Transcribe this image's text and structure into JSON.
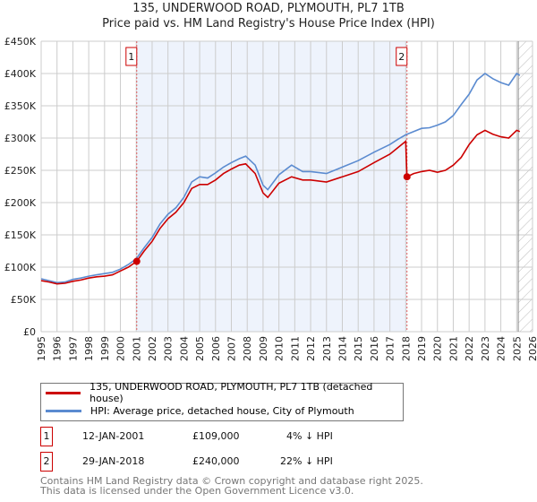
{
  "chart_data": {
    "type": "line",
    "title": "135, UNDERWOOD ROAD, PLYMOUTH, PL7 1TB",
    "subtitle": "Price paid vs. HM Land Registry's House Price Index (HPI)",
    "xlim": [
      1995,
      2026
    ],
    "ylim": [
      0,
      450000
    ],
    "yticks": [
      0,
      50000,
      100000,
      150000,
      200000,
      250000,
      300000,
      350000,
      400000,
      450000
    ],
    "ytick_labels": [
      "£0",
      "£50K",
      "£100K",
      "£150K",
      "£200K",
      "£250K",
      "£300K",
      "£350K",
      "£400K",
      "£450K"
    ],
    "xticks": [
      1995,
      1996,
      1997,
      1998,
      1999,
      2000,
      2001,
      2002,
      2003,
      2004,
      2005,
      2006,
      2007,
      2008,
      2009,
      2010,
      2011,
      2012,
      2013,
      2014,
      2015,
      2016,
      2017,
      2018,
      2019,
      2020,
      2021,
      2022,
      2023,
      2024,
      2025,
      2026
    ],
    "grid": true,
    "shaded_range": [
      2001.03,
      2018.08
    ],
    "hatched_from": 2025.1,
    "series": [
      {
        "name": "135, UNDERWOOD ROAD, PLYMOUTH, PL7 1TB (detached house)",
        "color": "#cc0000",
        "x": [
          1995,
          1995.5,
          1996,
          1996.5,
          1997,
          1997.5,
          1998,
          1998.5,
          1999,
          1999.5,
          2000,
          2000.5,
          2001.03,
          2001.5,
          2002,
          2002.5,
          2003,
          2003.5,
          2004,
          2004.5,
          2005,
          2005.5,
          2006,
          2006.5,
          2007,
          2007.5,
          2007.9,
          2008.5,
          2009,
          2009.3,
          2010,
          2010.8,
          2011.5,
          2012,
          2013,
          2014,
          2015,
          2016,
          2017,
          2017.5,
          2018.0,
          2018.08,
          2018.5,
          2019,
          2019.5,
          2020,
          2020.5,
          2021,
          2021.5,
          2022,
          2022.5,
          2023,
          2023.5,
          2024,
          2024.5,
          2025,
          2025.2
        ],
        "y": [
          79000,
          77000,
          74000,
          75000,
          78000,
          80000,
          83000,
          85000,
          86000,
          88000,
          94000,
          100000,
          109000,
          125000,
          140000,
          160000,
          175000,
          185000,
          200000,
          222000,
          228000,
          228000,
          235000,
          245000,
          252000,
          258000,
          260000,
          245000,
          215000,
          208000,
          230000,
          240000,
          235000,
          235000,
          232000,
          240000,
          248000,
          262000,
          275000,
          285000,
          295000,
          240000,
          245000,
          248000,
          250000,
          247000,
          250000,
          258000,
          270000,
          290000,
          305000,
          312000,
          306000,
          302000,
          300000,
          312000,
          310000
        ]
      },
      {
        "name": "HPI: Average price, detached house, City of Plymouth",
        "color": "#5b8bd0",
        "x": [
          1995,
          1995.5,
          1996,
          1996.5,
          1997,
          1997.5,
          1998,
          1998.5,
          1999,
          1999.5,
          2000,
          2000.5,
          2001,
          2001.5,
          2002,
          2002.5,
          2003,
          2003.5,
          2004,
          2004.5,
          2005,
          2005.5,
          2006,
          2006.5,
          2007,
          2007.5,
          2007.9,
          2008.5,
          2009,
          2009.3,
          2010,
          2010.8,
          2011.5,
          2012,
          2013,
          2014,
          2015,
          2016,
          2017,
          2017.5,
          2018,
          2018.5,
          2019,
          2019.5,
          2020,
          2020.5,
          2021,
          2021.5,
          2022,
          2022.5,
          2023,
          2023.5,
          2024,
          2024.5,
          2025,
          2025.2
        ],
        "y": [
          82000,
          79000,
          76000,
          77000,
          81000,
          83000,
          86000,
          88000,
          90000,
          92000,
          97000,
          104000,
          113000,
          130000,
          146000,
          167000,
          182000,
          192000,
          208000,
          232000,
          240000,
          238000,
          246000,
          255000,
          262000,
          268000,
          272000,
          258000,
          227000,
          220000,
          243000,
          258000,
          248000,
          248000,
          245000,
          255000,
          265000,
          278000,
          290000,
          298000,
          305000,
          310000,
          315000,
          316000,
          320000,
          325000,
          335000,
          352000,
          368000,
          390000,
          400000,
          392000,
          386000,
          382000,
          400000,
          397000
        ]
      }
    ],
    "annotations": [
      {
        "label": "1",
        "x": 2001.03,
        "y": 109000
      },
      {
        "label": "2",
        "x": 2018.08,
        "y": 240000
      }
    ]
  },
  "legend": {
    "red": "135, UNDERWOOD ROAD, PLYMOUTH, PL7 1TB (detached house)",
    "blue": "HPI: Average price, detached house, City of Plymouth"
  },
  "transactions": [
    {
      "num": "1",
      "date": "12-JAN-2001",
      "price": "£109,000",
      "hpi": "4% ↓ HPI"
    },
    {
      "num": "2",
      "date": "29-JAN-2018",
      "price": "£240,000",
      "hpi": "22% ↓ HPI"
    }
  ],
  "footer": {
    "line1": "Contains HM Land Registry data © Crown copyright and database right 2025.",
    "line2": "This data is licensed under the Open Government Licence v3.0."
  }
}
